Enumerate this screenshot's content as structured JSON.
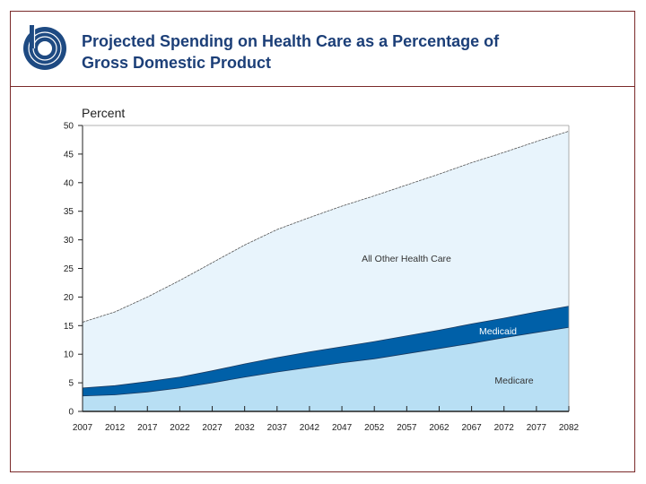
{
  "header": {
    "title_line1": "Projected Spending on Health Care as a Percentage of",
    "title_line2": "Gross Domestic Product"
  },
  "chart_data": {
    "type": "area",
    "stacked": true,
    "ylabel": "Percent",
    "xlabel": "",
    "ylim": [
      0,
      50
    ],
    "yticks": [
      0,
      5,
      10,
      15,
      20,
      25,
      30,
      35,
      40,
      45,
      50
    ],
    "categories": [
      "2007",
      "2012",
      "2017",
      "2022",
      "2027",
      "2032",
      "2037",
      "2042",
      "2047",
      "2052",
      "2057",
      "2062",
      "2067",
      "2072",
      "2077",
      "2082"
    ],
    "grid": false,
    "series": [
      {
        "name": "Medicare",
        "color": "#b8dff4",
        "values": [
          2.7,
          2.9,
          3.4,
          4.1,
          5.0,
          6.0,
          6.9,
          7.7,
          8.5,
          9.2,
          10.1,
          11.0,
          11.9,
          12.9,
          13.8,
          14.7
        ]
      },
      {
        "name": "Medicaid",
        "color": "#0060a8",
        "values": [
          1.4,
          1.6,
          1.8,
          1.9,
          2.1,
          2.3,
          2.5,
          2.7,
          2.8,
          3.0,
          3.1,
          3.2,
          3.4,
          3.4,
          3.6,
          3.7
        ]
      },
      {
        "name": "All Other Health Care",
        "color": "#e8f4fc",
        "values": [
          11.5,
          12.9,
          14.8,
          16.9,
          18.9,
          20.8,
          22.4,
          23.5,
          24.6,
          25.5,
          26.4,
          27.3,
          28.2,
          29.0,
          29.8,
          30.6
        ]
      }
    ]
  }
}
